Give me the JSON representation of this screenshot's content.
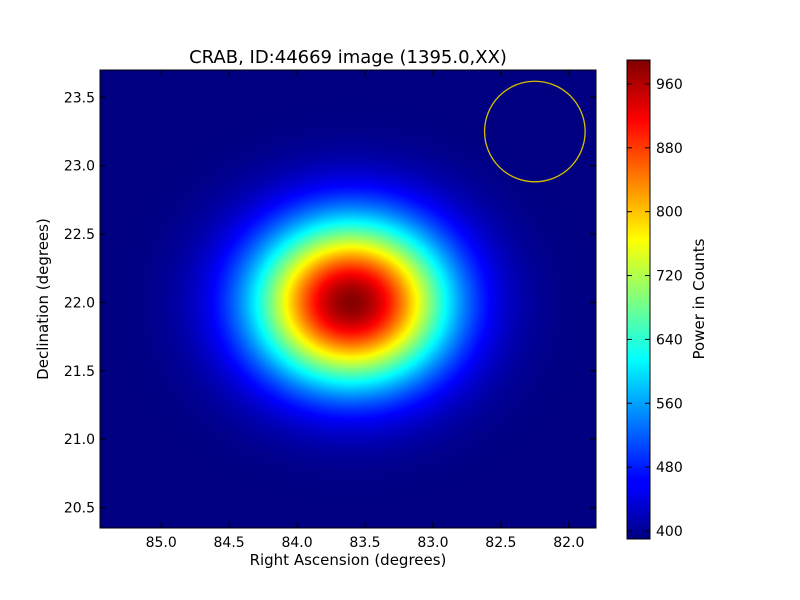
{
  "chart_data": {
    "type": "heatmap",
    "title": "CRAB, ID:44669 image (1395.0,XX)",
    "xlabel": "Right Ascension (degrees)",
    "ylabel": "Declination (degrees)",
    "xlim": [
      85.45,
      81.8
    ],
    "ylim": [
      20.35,
      23.7
    ],
    "x_ticks": [
      85.0,
      84.5,
      84.0,
      83.5,
      83.0,
      82.5,
      82.0
    ],
    "y_ticks": [
      20.5,
      21.0,
      21.5,
      22.0,
      22.5,
      23.0,
      23.5
    ],
    "colorbar": {
      "label": "Power in Counts",
      "range": [
        390,
        990
      ],
      "ticks": [
        400,
        480,
        560,
        640,
        720,
        800,
        880,
        960
      ],
      "colormap": "jet"
    },
    "source": {
      "ra": 83.6,
      "dec": 22.0,
      "peak": 985,
      "background": 390,
      "sigma_ra": 0.5,
      "sigma_dec": 0.42
    },
    "beam_circle": {
      "ra": 82.25,
      "dec": 23.25,
      "radius_deg": 0.37,
      "color": "#d4c000"
    }
  }
}
